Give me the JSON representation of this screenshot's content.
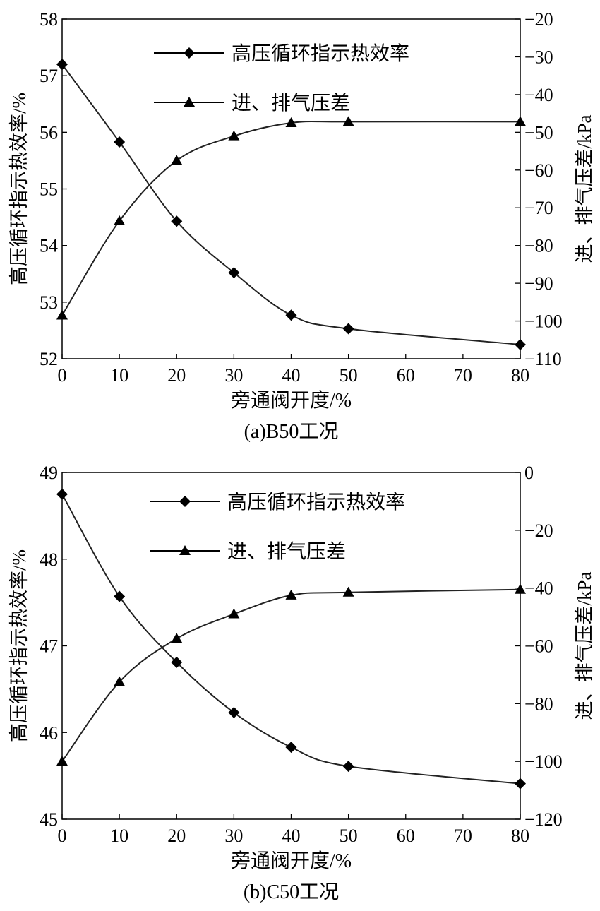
{
  "chart_data": [
    {
      "type": "line",
      "caption": "(a)B50工况",
      "xlabel": "旁通阀开度/%",
      "ylabel": "高压循环指示热效率/%",
      "y2label": "进、排气压差/kPa",
      "xlim": [
        0,
        80
      ],
      "ylim": [
        52,
        58
      ],
      "y2lim": [
        -110,
        -20
      ],
      "xticks": [
        "0",
        "10",
        "20",
        "30",
        "40",
        "50",
        "60",
        "70",
        "80"
      ],
      "yticks": [
        "52",
        "53",
        "54",
        "55",
        "56",
        "57",
        "58"
      ],
      "y2ticks": [
        "−110",
        "−100",
        "−90",
        "−80",
        "−70",
        "−60",
        "−50",
        "−40",
        "−30",
        "−20"
      ],
      "x": [
        0,
        10,
        20,
        30,
        40,
        50,
        80
      ],
      "series": [
        {
          "name": "高压循环指示热效率",
          "axis": "left",
          "marker": "diamond",
          "values": [
            57.2,
            55.83,
            54.43,
            53.52,
            52.77,
            52.53,
            52.25
          ]
        },
        {
          "name": "进、排气压差",
          "axis": "right",
          "marker": "triangle",
          "values": [
            -98.5,
            -73.5,
            -57.5,
            -51,
            -47.5,
            -47.2,
            -47.2
          ]
        }
      ],
      "legend_position": "top-center",
      "grid": false
    },
    {
      "type": "line",
      "caption": "(b)C50工况",
      "xlabel": "旁通阀开度/%",
      "ylabel": "高压循环指示热效率/%",
      "y2label": "进、排气压差/kPa",
      "xlim": [
        0,
        80
      ],
      "ylim": [
        45,
        49
      ],
      "y2lim": [
        -120,
        0
      ],
      "xticks": [
        "0",
        "10",
        "20",
        "30",
        "40",
        "50",
        "60",
        "70",
        "80"
      ],
      "yticks": [
        "45",
        "46",
        "47",
        "48",
        "49"
      ],
      "y2ticks": [
        "−120",
        "−100",
        "−80",
        "−60",
        "−40",
        "−20",
        "0"
      ],
      "x": [
        0,
        10,
        20,
        30,
        40,
        50,
        80
      ],
      "series": [
        {
          "name": "高压循环指示热效率",
          "axis": "left",
          "marker": "diamond",
          "values": [
            48.75,
            47.57,
            46.81,
            46.23,
            45.83,
            45.61,
            45.41
          ]
        },
        {
          "name": "进、排气压差",
          "axis": "right",
          "marker": "triangle",
          "values": [
            -100,
            -72.5,
            -57.5,
            -49,
            -42.5,
            -41.5,
            -40.5
          ]
        }
      ],
      "legend_position": "top-center",
      "grid": false
    }
  ]
}
